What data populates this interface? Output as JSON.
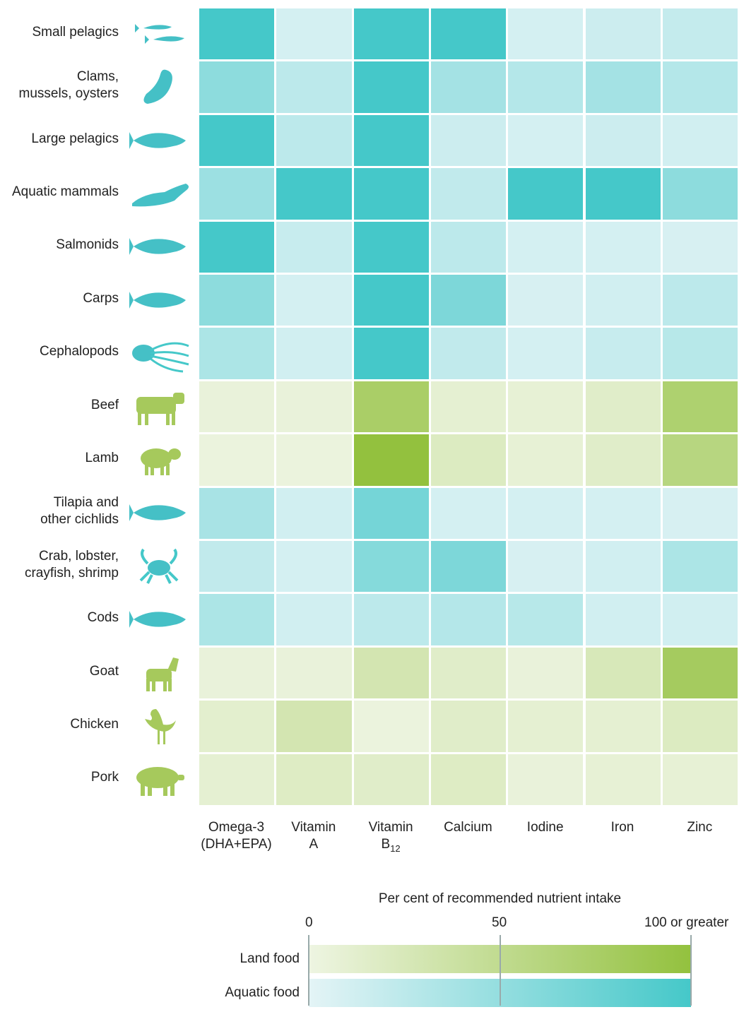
{
  "chart_data": {
    "type": "heatmap",
    "title": "",
    "legend_title": "Per cent of recommended nutrient intake",
    "legend_ticks": [
      "0",
      "50",
      "100 or greater"
    ],
    "legend_groups": [
      {
        "key": "land",
        "name": "Land food",
        "color_low": "#eef5e2",
        "color_high": "#93c13e"
      },
      {
        "key": "aquatic",
        "name": "Aquatic food",
        "color_low": "#e4f4f6",
        "color_high": "#45c8c9"
      }
    ],
    "value_range": [
      0,
      100
    ],
    "columns": [
      {
        "lines": [
          "Omega-3",
          "(DHA+EPA)"
        ]
      },
      {
        "lines": [
          "Vitamin",
          "A"
        ]
      },
      {
        "lines": [
          "Vitamin",
          "B"
        ],
        "subscript": "12"
      },
      {
        "lines": [
          "Calcium"
        ]
      },
      {
        "lines": [
          "Iodine"
        ]
      },
      {
        "lines": [
          "Iron"
        ]
      },
      {
        "lines": [
          "Zinc"
        ]
      }
    ],
    "rows": [
      {
        "lines": [
          "Small pelagics"
        ],
        "group": "aquatic",
        "icon": "sardines-icon",
        "values": [
          100,
          10,
          100,
          100,
          10,
          15,
          20
        ]
      },
      {
        "lines": [
          "Clams,",
          "mussels, oysters"
        ],
        "group": "aquatic",
        "icon": "mussel-icon",
        "values": [
          55,
          25,
          100,
          40,
          30,
          40,
          30
        ]
      },
      {
        "lines": [
          "Large pelagics"
        ],
        "group": "aquatic",
        "icon": "tuna-icon",
        "values": [
          100,
          25,
          100,
          15,
          10,
          15,
          12
        ]
      },
      {
        "lines": [
          "Aquatic mammals"
        ],
        "group": "aquatic",
        "icon": "seal-icon",
        "values": [
          45,
          100,
          100,
          22,
          100,
          100,
          55
        ]
      },
      {
        "lines": [
          "Salmonids"
        ],
        "group": "aquatic",
        "icon": "salmon-icon",
        "values": [
          100,
          18,
          100,
          25,
          10,
          10,
          8
        ]
      },
      {
        "lines": [
          "Carps"
        ],
        "group": "aquatic",
        "icon": "carp-icon",
        "values": [
          55,
          10,
          100,
          65,
          8,
          12,
          25
        ]
      },
      {
        "lines": [
          "Cephalopods"
        ],
        "group": "aquatic",
        "icon": "octopus-icon",
        "values": [
          35,
          12,
          100,
          22,
          10,
          18,
          28
        ]
      },
      {
        "lines": [
          "Beef"
        ],
        "group": "land",
        "icon": "cow-icon",
        "values": [
          5,
          5,
          75,
          10,
          8,
          15,
          70
        ]
      },
      {
        "lines": [
          "Lamb"
        ],
        "group": "land",
        "icon": "sheep-icon",
        "values": [
          3,
          3,
          100,
          20,
          8,
          15,
          60
        ]
      },
      {
        "lines": [
          "Tilapia and",
          "other cichlids"
        ],
        "group": "aquatic",
        "icon": "tilapia-icon",
        "values": [
          38,
          12,
          70,
          10,
          10,
          10,
          8
        ]
      },
      {
        "lines": [
          "Crab, lobster,",
          "crayfish, shrimp"
        ],
        "group": "aquatic",
        "icon": "crab-icon",
        "values": [
          22,
          10,
          60,
          65,
          8,
          12,
          35
        ]
      },
      {
        "lines": [
          "Cods"
        ],
        "group": "aquatic",
        "icon": "cod-icon",
        "values": [
          35,
          12,
          25,
          30,
          28,
          12,
          12
        ]
      },
      {
        "lines": [
          "Goat"
        ],
        "group": "land",
        "icon": "goat-icon",
        "values": [
          5,
          5,
          30,
          15,
          5,
          25,
          80
        ]
      },
      {
        "lines": [
          "Chicken"
        ],
        "group": "land",
        "icon": "chicken-icon",
        "values": [
          12,
          30,
          3,
          15,
          10,
          10,
          20
        ]
      },
      {
        "lines": [
          "Pork"
        ],
        "group": "land",
        "icon": "pig-icon",
        "values": [
          10,
          18,
          15,
          18,
          5,
          8,
          8
        ]
      }
    ]
  }
}
